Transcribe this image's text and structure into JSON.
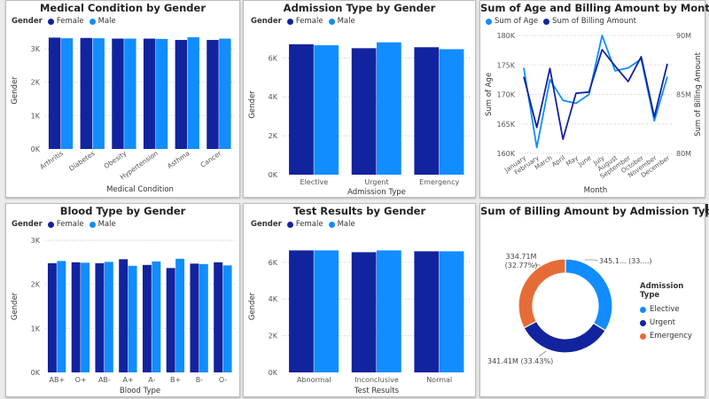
{
  "colors": {
    "female": "#12239e",
    "male": "#118dff",
    "elective": "#118dff",
    "urgent": "#12239e",
    "emergency": "#e66c37",
    "age": "#118dff",
    "billing": "#12239e"
  },
  "cards": {
    "medical": {
      "title": "Medical Condition by Gender",
      "legend": {
        "title": "Gender",
        "items": [
          "Female",
          "Male"
        ]
      },
      "chart_data": {
        "type": "bar",
        "categories": [
          "Arthritis",
          "Diabetes",
          "Obesity",
          "Hypertension",
          "Asthma",
          "Cancer"
        ],
        "series": [
          {
            "name": "Female",
            "values": [
              3330,
              3320,
              3300,
              3300,
              3260,
              3260
            ]
          },
          {
            "name": "Male",
            "values": [
              3310,
              3310,
              3300,
              3290,
              3340,
              3300
            ]
          }
        ],
        "yticks": [
          "0K",
          "1K",
          "2K",
          "3K"
        ],
        "ylim": [
          0,
          3500
        ],
        "xlabel": "Medical Condition",
        "ylabel": "Gender"
      }
    },
    "admission": {
      "title": "Admission Type by Gender",
      "legend": {
        "title": "Gender",
        "items": [
          "Female",
          "Male"
        ]
      },
      "chart_data": {
        "type": "bar",
        "categories": [
          "Elective",
          "Urgent",
          "Emergency"
        ],
        "series": [
          {
            "name": "Female",
            "values": [
              6700,
              6500,
              6550
            ]
          },
          {
            "name": "Male",
            "values": [
              6650,
              6800,
              6450
            ]
          }
        ],
        "yticks": [
          "0K",
          "2K",
          "4K",
          "6K"
        ],
        "ylim": [
          0,
          7200
        ],
        "xlabel": "Admission Type",
        "ylabel": "Gender"
      }
    },
    "month": {
      "title": "Sum of Age and Billing Amount by Month",
      "legend": {
        "items": [
          "Sum of Age",
          "Sum of Billing Amount"
        ]
      },
      "chart_data": {
        "type": "line",
        "categories": [
          "January",
          "February",
          "March",
          "April",
          "May",
          "June",
          "July",
          "August",
          "September",
          "October",
          "November",
          "December"
        ],
        "series": [
          {
            "name": "Sum of Age",
            "axis": "left",
            "values": [
              174500,
              161000,
              172500,
              169000,
              168500,
              170000,
              180000,
              174000,
              174500,
              176000,
              165500,
              173000
            ]
          },
          {
            "name": "Sum of Billing Amount",
            "axis": "right",
            "values": [
              86.5,
              82.2,
              87.2,
              81.2,
              85.1,
              85.2,
              88.8,
              87.4,
              86.1,
              88.2,
              83.1,
              87.6
            ]
          }
        ],
        "yleft": {
          "ticks": [
            "160K",
            "165K",
            "170K",
            "175K",
            "180K"
          ],
          "range": [
            160000,
            180000
          ]
        },
        "yright": {
          "ticks": [
            "80M",
            "85M",
            "90M"
          ],
          "range": [
            80,
            90
          ]
        },
        "xlabel": "Month",
        "ylabel_left": "Sum of Age",
        "ylabel_right": "Sum of Billing Amount"
      }
    },
    "blood": {
      "title": "Blood Type by Gender",
      "legend": {
        "title": "Gender",
        "items": [
          "Female",
          "Male"
        ]
      },
      "chart_data": {
        "type": "bar",
        "categories": [
          "AB+",
          "O+",
          "AB-",
          "A+",
          "A-",
          "B+",
          "B-",
          "O-"
        ],
        "series": [
          {
            "name": "Female",
            "values": [
              2480,
              2500,
              2480,
              2570,
              2440,
              2370,
              2470,
              2500
            ]
          },
          {
            "name": "Male",
            "values": [
              2530,
              2490,
              2510,
              2420,
              2520,
              2580,
              2460,
              2430
            ]
          }
        ],
        "yticks": [
          "0K",
          "1K",
          "2K",
          "3K"
        ],
        "ylim": [
          0,
          3000
        ],
        "xlabel": "Blood Type",
        "ylabel": "Gender"
      }
    },
    "results": {
      "title": "Test Results by Gender",
      "legend": {
        "title": "Gender",
        "items": [
          "Female",
          "Male"
        ]
      },
      "chart_data": {
        "type": "bar",
        "categories": [
          "Abnormal",
          "Inconclusive",
          "Normal"
        ],
        "series": [
          {
            "name": "Female",
            "values": [
              6650,
              6550,
              6600
            ]
          },
          {
            "name": "Male",
            "values": [
              6650,
              6650,
              6600
            ]
          }
        ],
        "yticks": [
          "0K",
          "2K",
          "4K",
          "6K"
        ],
        "ylim": [
          0,
          7200
        ],
        "xlabel": "Test Results",
        "ylabel": "Gender"
      }
    },
    "billing": {
      "title": "Sum of Billing Amount by Admission Type",
      "legend": {
        "title": "Admission Type",
        "items": [
          "Elective",
          "Urgent",
          "Emergency"
        ]
      },
      "chart_data": {
        "type": "pie",
        "categories": [
          "Elective",
          "Urgent",
          "Emergency"
        ],
        "values": [
          33.8,
          33.43,
          32.77
        ],
        "labels": [
          "345.1... (33....)",
          "341.41M (33.43%)",
          "334.71M\n(32.77%)"
        ]
      }
    }
  }
}
